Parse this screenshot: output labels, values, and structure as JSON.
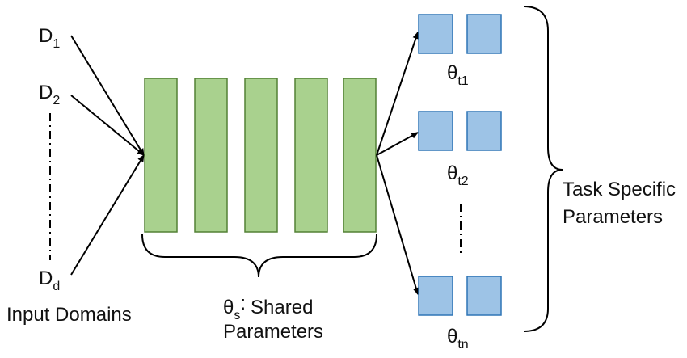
{
  "input_domains": {
    "d1": {
      "base": "D",
      "sub": "1"
    },
    "d2": {
      "base": "D",
      "sub": "2"
    },
    "dd": {
      "base": "D",
      "sub": "d"
    },
    "caption": "Input Domains"
  },
  "shared": {
    "theta": "θ",
    "sub": "s",
    "colon": ":",
    "line1": "Shared",
    "line2": "Parameters",
    "block_count": 5,
    "fill": "#a9d18e",
    "stroke": "#538135"
  },
  "tasks": {
    "t1": {
      "base": "θ",
      "sub": "t1"
    },
    "t2": {
      "base": "θ",
      "sub": "t2"
    },
    "tn": {
      "base": "θ",
      "sub": "tn"
    },
    "fill": "#9dc3e6",
    "stroke": "#2e75b6"
  },
  "task_specific": {
    "line1": "Task Specific",
    "line2": "Parameters"
  }
}
